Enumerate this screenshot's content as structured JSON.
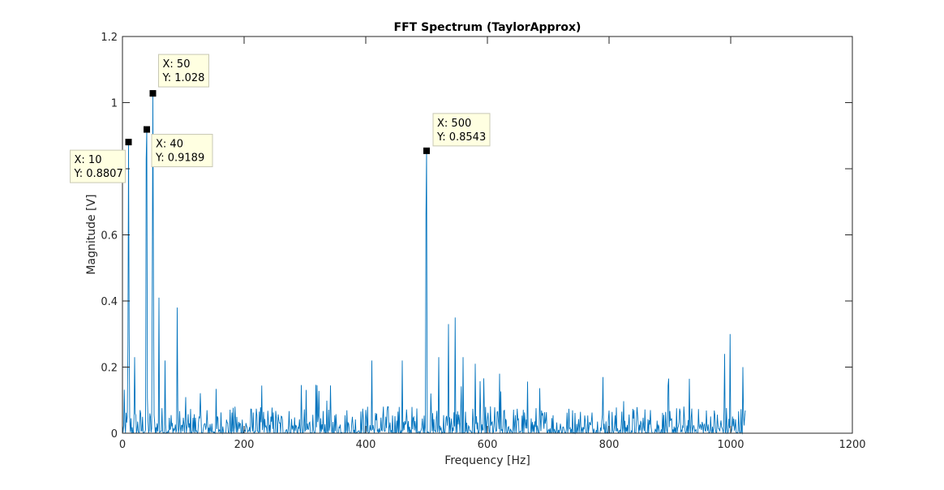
{
  "chart_data": {
    "type": "line",
    "title": "FFT Spectrum (TaylorApprox)",
    "xlabel": "Frequency [Hz]",
    "ylabel": "Magnitude [V]",
    "xlim": [
      0,
      1200
    ],
    "ylim": [
      0,
      1.2
    ],
    "x_ticks": [
      0,
      200,
      400,
      600,
      800,
      1000,
      1200
    ],
    "y_ticks": [
      0,
      0.2,
      0.4,
      0.6,
      0.8,
      1,
      1.2
    ],
    "x_tick_labels": [
      "0",
      "200",
      "400",
      "600",
      "800",
      "1000",
      "1200"
    ],
    "y_tick_labels": [
      "0",
      "0.2",
      "0.4",
      "0.6",
      "0.8",
      "1",
      "1.2"
    ],
    "grid": false,
    "series_color": "#0072BD",
    "frequency_step": 1,
    "frequency_max": 1024,
    "peaks": [
      {
        "x": 9,
        "y": 0.27
      },
      {
        "x": 10,
        "y": 0.8807
      },
      {
        "x": 11,
        "y": 0.31
      },
      {
        "x": 39,
        "y": 0.83
      },
      {
        "x": 40,
        "y": 0.9189
      },
      {
        "x": 49,
        "y": 0.45
      },
      {
        "x": 50,
        "y": 1.028
      },
      {
        "x": 51,
        "y": 0.45
      },
      {
        "x": 60,
        "y": 0.41
      },
      {
        "x": 90,
        "y": 0.38
      },
      {
        "x": 499,
        "y": 0.66
      },
      {
        "x": 500,
        "y": 0.8543
      },
      {
        "x": 547,
        "y": 0.35
      },
      {
        "x": 536,
        "y": 0.33
      },
      {
        "x": 999,
        "y": 0.3
      },
      {
        "x": 20,
        "y": 0.23
      },
      {
        "x": 70,
        "y": 0.22
      },
      {
        "x": 410,
        "y": 0.22
      },
      {
        "x": 460,
        "y": 0.22
      },
      {
        "x": 520,
        "y": 0.23
      },
      {
        "x": 560,
        "y": 0.23
      },
      {
        "x": 580,
        "y": 0.21
      },
      {
        "x": 620,
        "y": 0.18
      },
      {
        "x": 790,
        "y": 0.17
      },
      {
        "x": 990,
        "y": 0.24
      },
      {
        "x": 1020,
        "y": 0.2
      }
    ],
    "data_tips": [
      {
        "x_label": "X: 10",
        "y_label": "Y: 0.8807",
        "x": 10,
        "y": 0.8807
      },
      {
        "x_label": "X: 40",
        "y_label": "Y: 0.9189",
        "x": 40,
        "y": 0.9189
      },
      {
        "x_label": "X: 50",
        "y_label": "Y: 1.028",
        "x": 50,
        "y": 1.028
      },
      {
        "x_label": "X: 500",
        "y_label": "Y: 0.8543",
        "x": 500,
        "y": 0.8543
      }
    ]
  }
}
